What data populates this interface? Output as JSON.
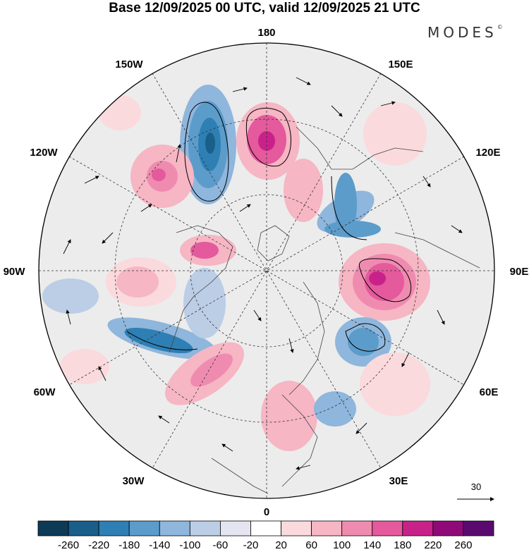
{
  "title": "Base 12/09/2025 00 UTC, valid 12/09/2025 21 UTC",
  "brand": "MODES",
  "brand_mark": "©",
  "longitude_labels": {
    "n180": "180",
    "e150": "150E",
    "e120": "120E",
    "e90": "90E",
    "e60": "60E",
    "e30": "30E",
    "s0": "0",
    "w30": "30W",
    "w60": "60W",
    "w90": "90W",
    "w120": "120W",
    "w150": "150W"
  },
  "vector_legend": {
    "value": "30"
  },
  "colorbar": {
    "labels": [
      "-260",
      "-220",
      "-180",
      "-140",
      "-100",
      "-60",
      "-20",
      "20",
      "60",
      "100",
      "140",
      "180",
      "220",
      "260"
    ],
    "colors": [
      "#0d3a57",
      "#1a5e8a",
      "#2e7fb4",
      "#5b9ccb",
      "#8fb6dc",
      "#bccde6",
      "#e4e5f1",
      "#ffffff",
      "#fadadd",
      "#f6b6c4",
      "#f08bb0",
      "#e45a9c",
      "#c8228a",
      "#8f0a78",
      "#5a0a6e"
    ]
  },
  "colors": {
    "land": "#f0f0f0",
    "ocean": "#e8e8ee",
    "coast": "#444444",
    "grid": "#333333"
  }
}
